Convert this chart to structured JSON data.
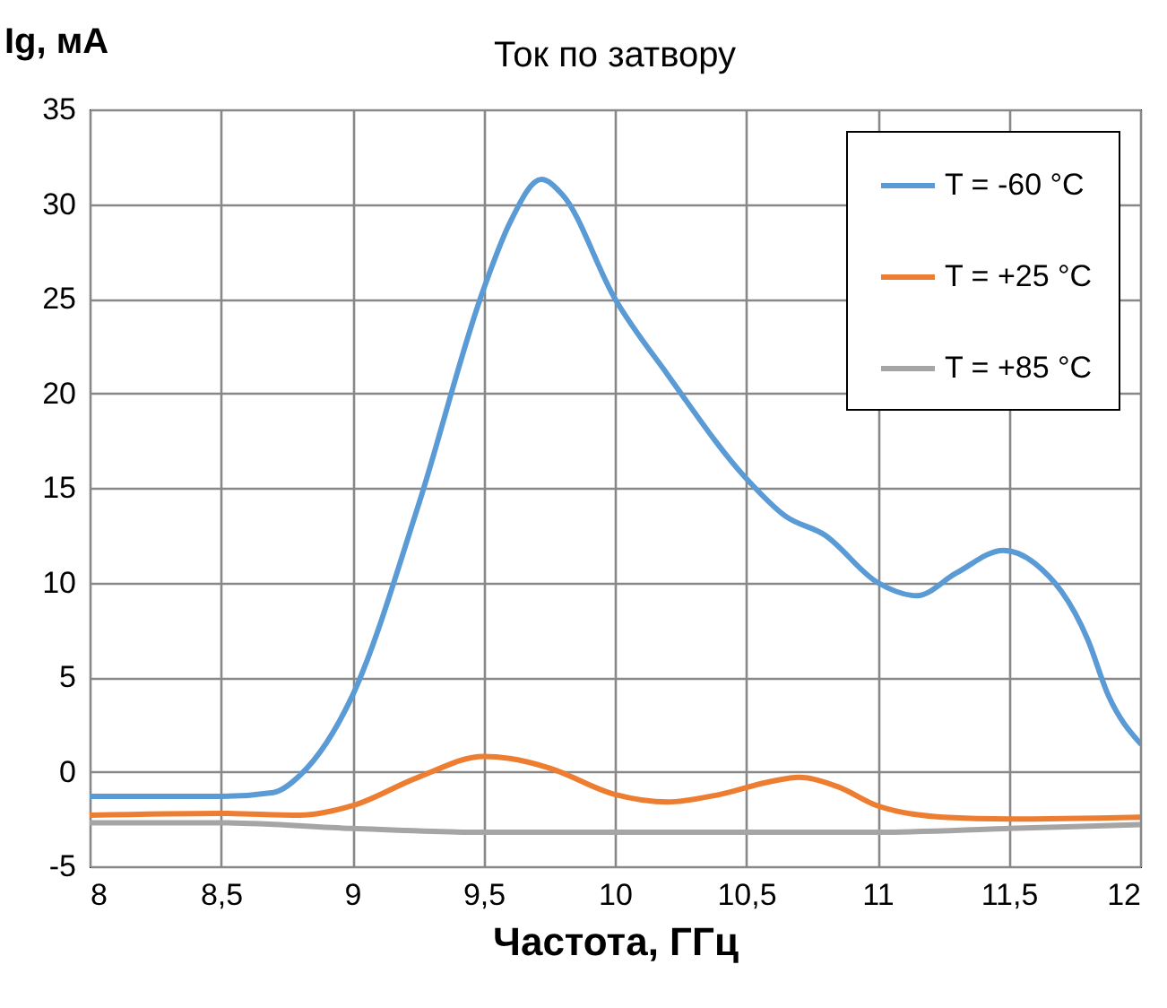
{
  "chart_data": {
    "type": "line",
    "title": "Ток по затвору",
    "xlabel": "Частота, ГГц",
    "ylabel": "Ig, мА",
    "xlim": [
      8,
      12
    ],
    "xticks": [
      8,
      {
        "value": 8.5,
        "label": "8,5"
      },
      9,
      {
        "value": 9.5,
        "label": "9,5"
      },
      10,
      {
        "value": 10.5,
        "label": "10,5"
      },
      11,
      {
        "value": 11.5,
        "label": "11,5"
      },
      12
    ],
    "ylim": [
      -5,
      35
    ],
    "yticks": [
      -5,
      0,
      5,
      10,
      15,
      20,
      25,
      30,
      35
    ],
    "grid": true,
    "legend": "top right",
    "line_style": "solid",
    "marker": "none",
    "series": [
      {
        "name": "T = -60 °C",
        "color": "#5b9bd5",
        "x": [
          8,
          8.5,
          8.7,
          8.8,
          9,
          9.25,
          9.5,
          9.6,
          9.72,
          9.8,
          10,
          10.2,
          10.5,
          10.65,
          10.8,
          11,
          11.15,
          11.3,
          11.48,
          11.6,
          11.8,
          11.88,
          12
        ],
        "values": [
          -1.3,
          -1.3,
          -1.1,
          -0.2,
          4,
          14,
          25.5,
          29,
          31.3,
          30.5,
          25,
          21,
          15.5,
          13.5,
          12.5,
          10,
          9.3,
          10.5,
          11.7,
          11,
          7,
          4,
          1.5
        ]
      },
      {
        "name": "T = +25 °C",
        "color": "#ed7d31",
        "x": [
          8,
          8.5,
          8.8,
          9,
          9.25,
          9.5,
          9.6,
          9.75,
          10,
          10.2,
          10.4,
          10.6,
          10.7,
          10.85,
          11,
          11.25,
          11.5,
          12
        ],
        "values": [
          -2.3,
          -2.2,
          -2.3,
          -1.8,
          -0.3,
          0.8,
          0.7,
          0.2,
          -1.2,
          -1.6,
          -1.2,
          -0.5,
          -0.3,
          -0.8,
          -1.8,
          -2.4,
          -2.5,
          -2.4
        ]
      },
      {
        "name": "T = +85 °C",
        "color": "#a5a5a5",
        "x": [
          8,
          8.5,
          9,
          9.5,
          10,
          10.5,
          11,
          11.5,
          12
        ],
        "values": [
          -2.7,
          -2.7,
          -3,
          -3.2,
          -3.2,
          -3.2,
          -3.2,
          -3,
          -2.8
        ]
      }
    ]
  }
}
